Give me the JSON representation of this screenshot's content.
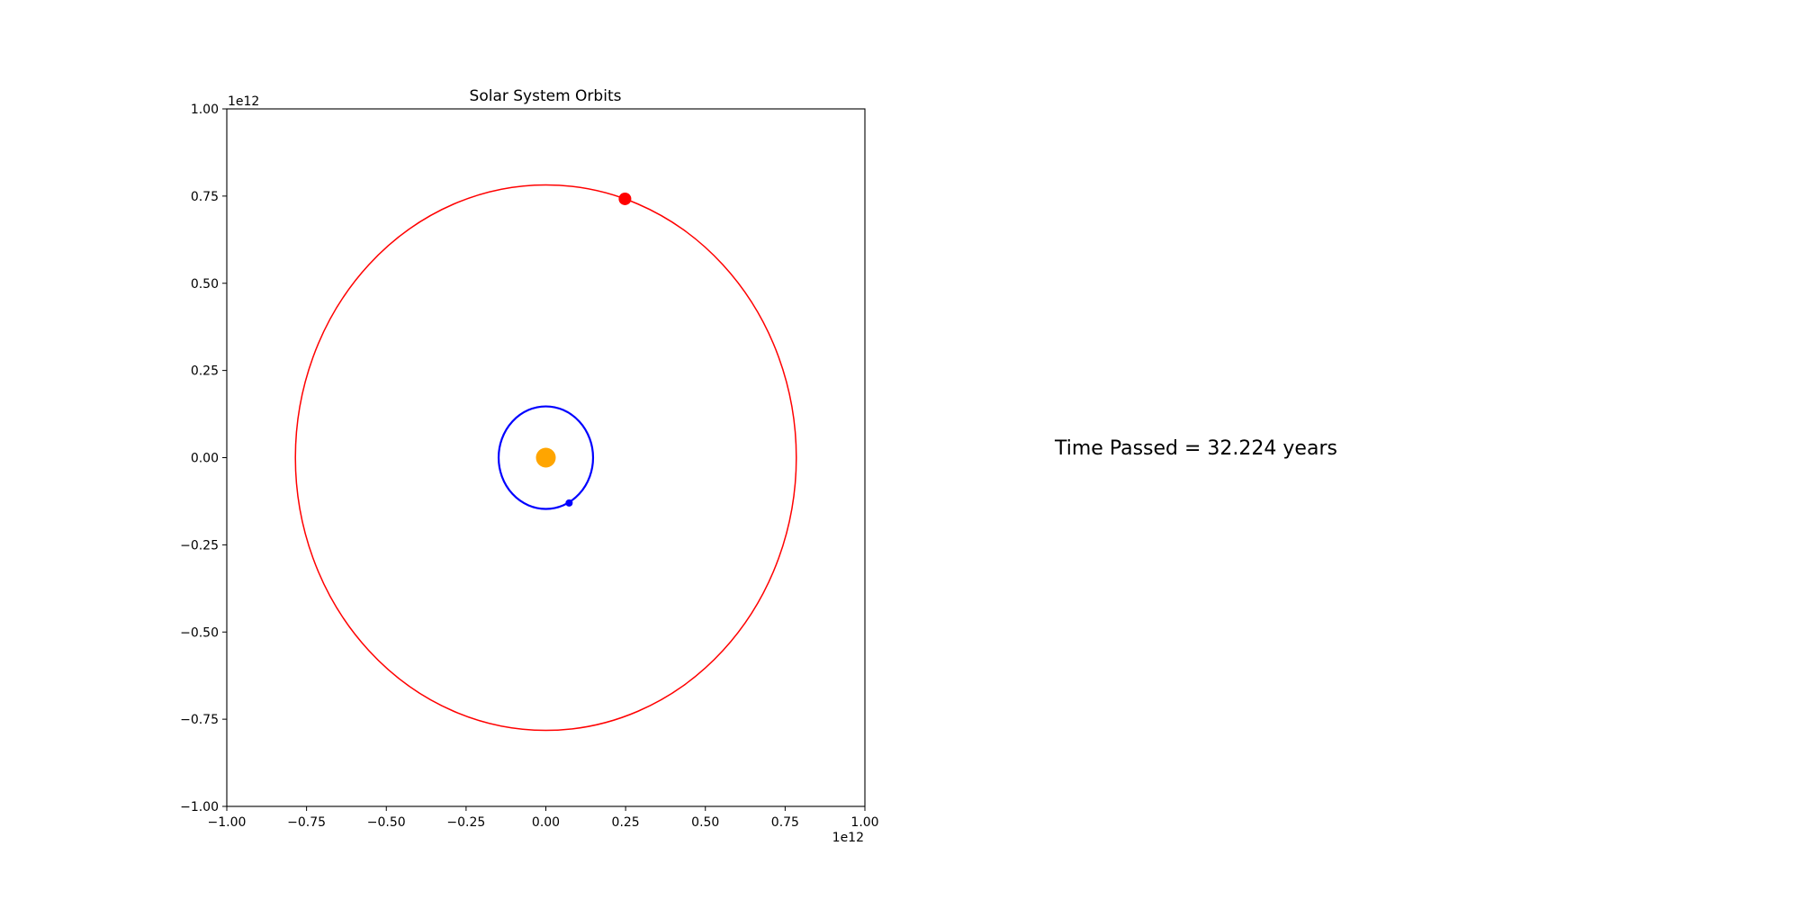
{
  "chart_data": {
    "type": "line",
    "title": "Solar System Orbits",
    "xlabel": "",
    "ylabel": "",
    "xlim": [
      -1.0,
      1.0
    ],
    "ylim": [
      -1.0,
      1.0
    ],
    "x_offset_label": "1e12",
    "y_offset_label": "1e12",
    "x_ticks": [
      -1.0,
      -0.75,
      -0.5,
      -0.25,
      0.0,
      0.25,
      0.5,
      0.75,
      1.0
    ],
    "x_tick_labels": [
      "−1.00",
      "−0.75",
      "−0.50",
      "−0.25",
      "0.00",
      "0.25",
      "0.50",
      "0.75",
      "1.00"
    ],
    "y_ticks": [
      1.0,
      0.75,
      0.5,
      0.25,
      0.0,
      -0.25,
      -0.5,
      -0.75,
      -1.0
    ],
    "y_tick_labels": [
      "1.00",
      "0.75",
      "0.50",
      "0.25",
      "0.00",
      "−0.25",
      "−0.50",
      "−0.75",
      "−1.00"
    ],
    "grid": false,
    "series": [
      {
        "kind": "orbit",
        "color": "#ff0000",
        "center": [
          0.0,
          0.0
        ],
        "semi_axis_x": 0.785,
        "semi_axis_y": 0.782,
        "line_width": 1.5
      },
      {
        "kind": "orbit",
        "color": "#0000ff",
        "center": [
          0.0,
          0.0
        ],
        "semi_axis_x": 0.148,
        "semi_axis_y": 0.147,
        "line_width": 2.2
      }
    ],
    "bodies": [
      {
        "kind": "sun",
        "color": "#ffa500",
        "x": 0.0,
        "y": 0.0,
        "marker": "large"
      },
      {
        "kind": "planet",
        "color": "#ff0000",
        "x": 0.248,
        "y": 0.742,
        "marker": "medium"
      },
      {
        "kind": "planet",
        "color": "#0000ff",
        "x": 0.073,
        "y": -0.13,
        "marker": "small"
      }
    ]
  },
  "readout": {
    "time_passed": "Time Passed = 32.224 years"
  }
}
